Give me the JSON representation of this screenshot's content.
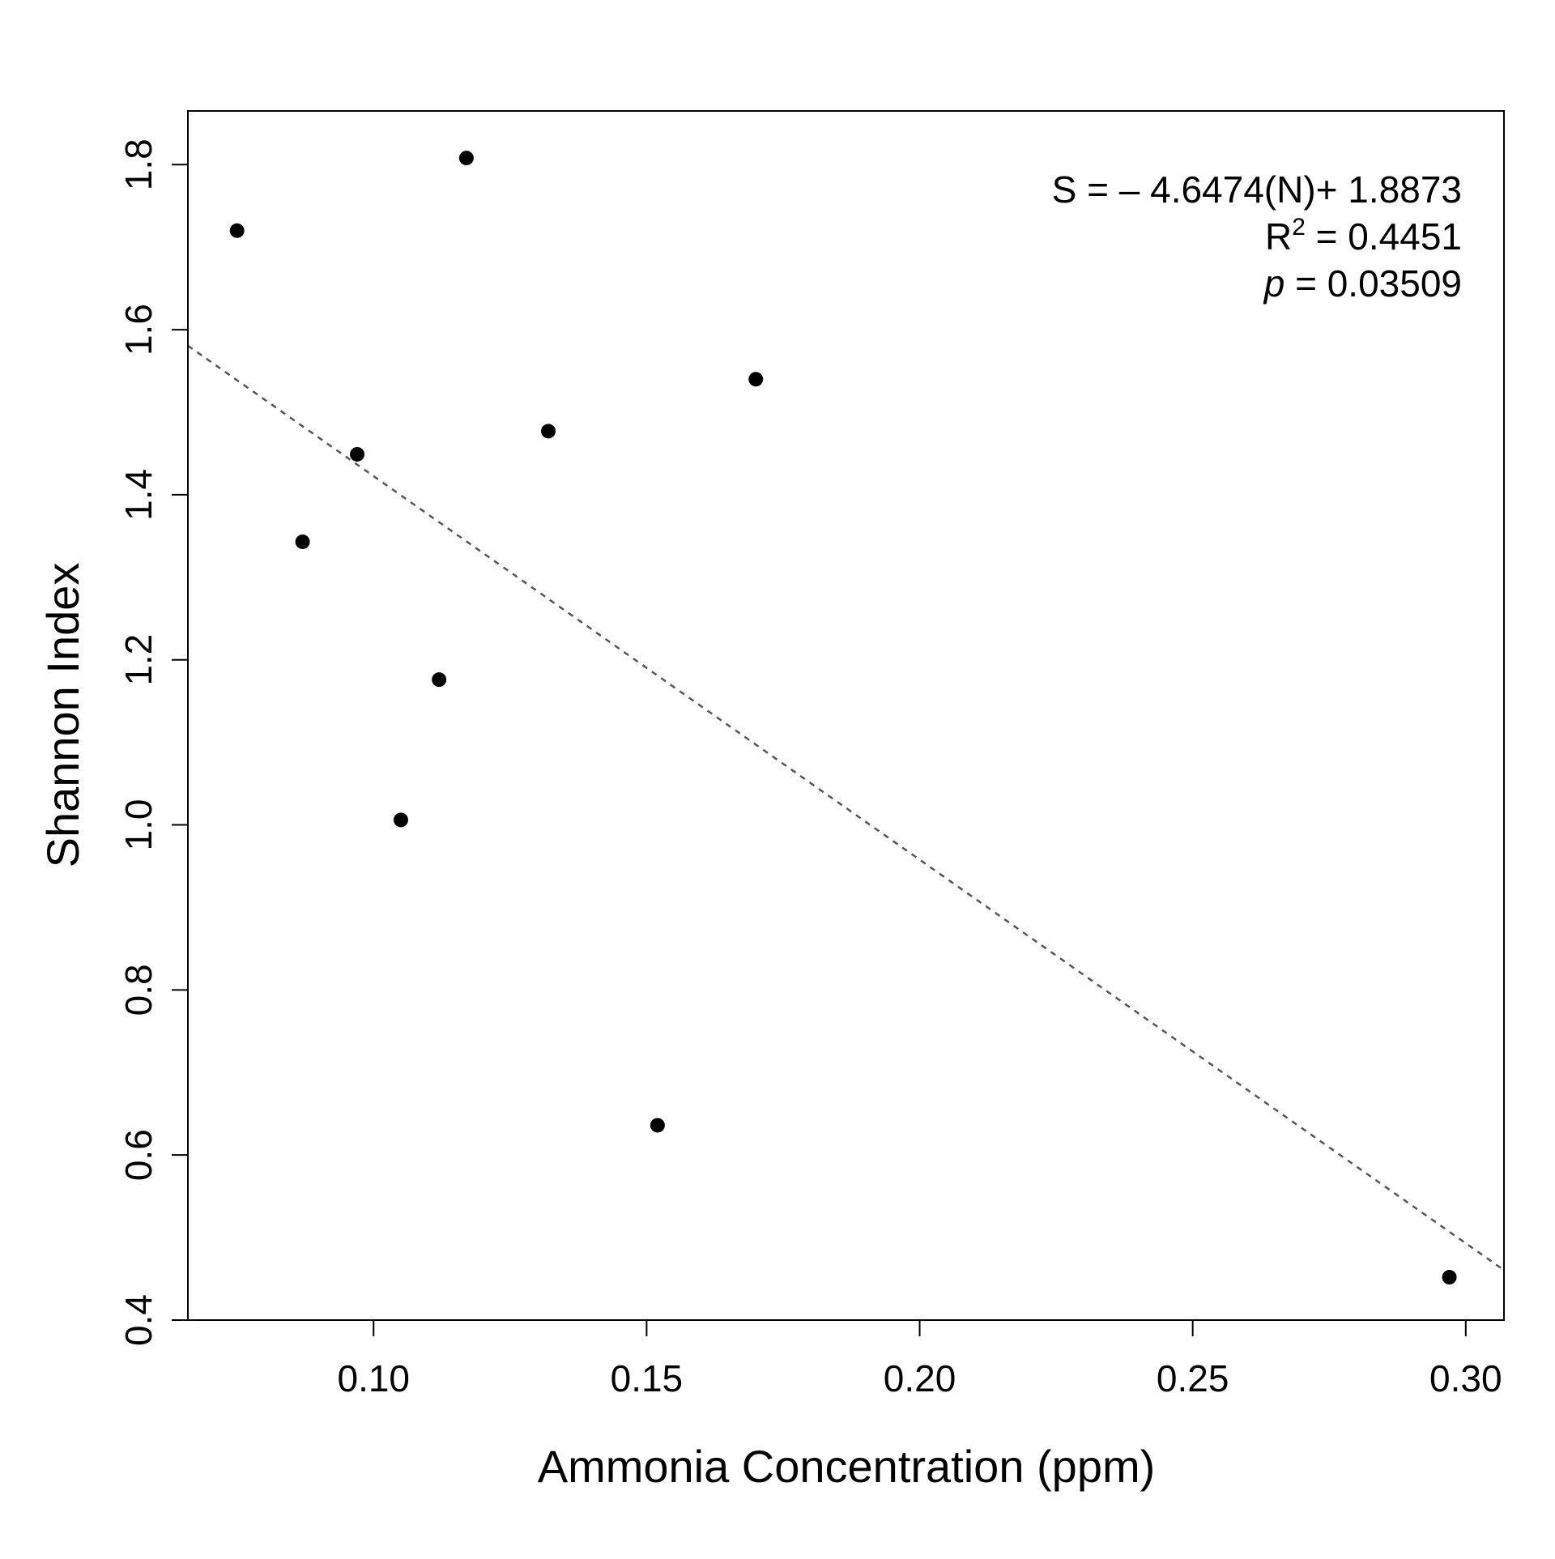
{
  "chart_data": {
    "type": "scatter",
    "title": "",
    "xlabel": "Ammonia Concentration (ppm)",
    "ylabel": "Shannon Index",
    "xlim": [
      0.066,
      0.307
    ],
    "ylim": [
      0.4,
      1.865
    ],
    "x_ticks": [
      0.1,
      0.15,
      0.2,
      0.25,
      0.3
    ],
    "x_tick_labels": [
      "0.10",
      "0.15",
      "0.20",
      "0.25",
      "0.30"
    ],
    "y_ticks": [
      0.4,
      0.6,
      0.8,
      1.0,
      1.2,
      1.4,
      1.6,
      1.8
    ],
    "y_tick_labels": [
      "0.4",
      "0.6",
      "0.8",
      "1.0",
      "1.2",
      "1.4",
      "1.6",
      "1.8"
    ],
    "grid": false,
    "legend": "none",
    "series": [
      {
        "points": [
          {
            "x": 0.075,
            "y": 1.72
          },
          {
            "x": 0.087,
            "y": 1.343
          },
          {
            "x": 0.097,
            "y": 1.449
          },
          {
            "x": 0.105,
            "y": 1.006
          },
          {
            "x": 0.112,
            "y": 1.176
          },
          {
            "x": 0.117,
            "y": 1.808
          },
          {
            "x": 0.132,
            "y": 1.477
          },
          {
            "x": 0.152,
            "y": 0.636
          },
          {
            "x": 0.17,
            "y": 1.54
          },
          {
            "x": 0.297,
            "y": 0.452
          }
        ]
      }
    ],
    "trendline": {
      "slope": -4.6474,
      "intercept": 1.8873,
      "style": "dashed",
      "color": "#555555"
    },
    "annotation": {
      "equation": "S =  – 4.6474(N)+ 1.8873",
      "r2_prefix": "R",
      "r2_sup": "2",
      "r2_value": " = 0.4451",
      "p_symbol": "p",
      "p_value": " = 0.03509"
    },
    "colors": {
      "points": "#000000",
      "axes": "#000000",
      "trendline": "#555555"
    }
  }
}
